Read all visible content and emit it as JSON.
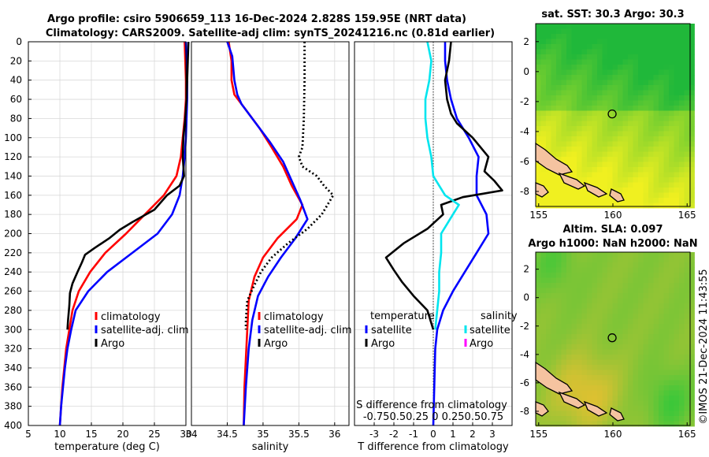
{
  "title": {
    "line1": "Argo profile: csiro 5906659_113 16-Dec-2024 2.828S 159.95E (NRT data)",
    "line2": "Climatology: CARS2009. Satellite-adj clim: synTS_20241216.nc (0.81d earlier)"
  },
  "watermark": "©IMOS 21-Dec-2024 11:43:55",
  "colors": {
    "climatology": "#ff0000",
    "satellite": "#0000ff",
    "argo": "#000000",
    "salinity_satellite": "#00e5ee",
    "salinity_argo": "#ff00ff",
    "sst_map_low": "#f0f020",
    "sst_map_high": "#20b83a",
    "sla_map_low": "#f5c030",
    "sla_map_high": "#2ec83a",
    "land": "#f5c3a0"
  },
  "chart_data": [
    {
      "type": "line",
      "id": "temperature",
      "xlabel": "temperature (deg C)",
      "xlim": [
        5,
        30
      ],
      "xticks": [
        "5",
        "10",
        "15",
        "20",
        "25",
        "30"
      ],
      "ylim": [
        0,
        400
      ],
      "yticks": [
        "0",
        "20",
        "40",
        "60",
        "80",
        "100",
        "120",
        "140",
        "160",
        "180",
        "200",
        "220",
        "240",
        "260",
        "280",
        "300",
        "320",
        "340",
        "360",
        "380",
        "400"
      ],
      "legend": [
        "climatology",
        "satellite-adj. clim",
        "Argo"
      ],
      "series": [
        {
          "name": "climatology",
          "color": "#ff0000",
          "points": [
            [
              29.8,
              0
            ],
            [
              29.9,
              20
            ],
            [
              30.0,
              40
            ],
            [
              30.0,
              60
            ],
            [
              29.8,
              80
            ],
            [
              29.5,
              100
            ],
            [
              29.2,
              120
            ],
            [
              28.5,
              140
            ],
            [
              26.5,
              160
            ],
            [
              23.5,
              180
            ],
            [
              20.5,
              200
            ],
            [
              17.2,
              220
            ],
            [
              14.8,
              240
            ],
            [
              13.0,
              260
            ],
            [
              12.0,
              280
            ],
            [
              11.5,
              300
            ],
            [
              11.0,
              320
            ],
            [
              10.7,
              340
            ],
            [
              10.4,
              360
            ],
            [
              10.2,
              380
            ],
            [
              10.0,
              400
            ]
          ]
        },
        {
          "name": "satellite-adj. clim",
          "color": "#0000ff",
          "points": [
            [
              30.0,
              0
            ],
            [
              30.1,
              20
            ],
            [
              30.2,
              40
            ],
            [
              30.2,
              60
            ],
            [
              30.1,
              80
            ],
            [
              30.0,
              100
            ],
            [
              29.8,
              120
            ],
            [
              29.5,
              140
            ],
            [
              29.0,
              160
            ],
            [
              27.8,
              180
            ],
            [
              25.5,
              200
            ],
            [
              21.5,
              220
            ],
            [
              17.5,
              240
            ],
            [
              14.5,
              260
            ],
            [
              12.5,
              280
            ],
            [
              11.8,
              300
            ],
            [
              11.2,
              320
            ],
            [
              10.8,
              340
            ],
            [
              10.5,
              360
            ],
            [
              10.2,
              380
            ],
            [
              10.0,
              400
            ]
          ]
        },
        {
          "name": "Argo",
          "color": "#000000",
          "points": [
            [
              30.4,
              0
            ],
            [
              30.3,
              20
            ],
            [
              30.2,
              40
            ],
            [
              30.1,
              60
            ],
            [
              29.9,
              80
            ],
            [
              29.6,
              100
            ],
            [
              29.5,
              120
            ],
            [
              29.7,
              140
            ],
            [
              29.0,
              150
            ],
            [
              27.0,
              160
            ],
            [
              25.0,
              175
            ],
            [
              21.5,
              188
            ],
            [
              19.5,
              196
            ],
            [
              17.8,
              205
            ],
            [
              15.5,
              215
            ],
            [
              14.0,
              222
            ],
            [
              13.5,
              230
            ],
            [
              12.8,
              240
            ],
            [
              12.0,
              252
            ],
            [
              11.6,
              262
            ],
            [
              11.5,
              275
            ],
            [
              11.3,
              290
            ],
            [
              11.2,
              300
            ]
          ]
        }
      ]
    },
    {
      "type": "line",
      "id": "salinity",
      "xlabel": "salinity",
      "xlim": [
        34,
        36.2
      ],
      "xticks": [
        "34",
        "34.5",
        "35",
        "35.5",
        "36"
      ],
      "ylim": [
        0,
        400
      ],
      "legend": [
        "climatology",
        "satellite-adj. clim",
        "Argo"
      ],
      "series": [
        {
          "name": "climatology",
          "color": "#ff0000",
          "points": [
            [
              34.52,
              0
            ],
            [
              34.56,
              20
            ],
            [
              34.56,
              40
            ],
            [
              34.6,
              55
            ],
            [
              34.75,
              70
            ],
            [
              34.95,
              90
            ],
            [
              35.12,
              110
            ],
            [
              35.28,
              130
            ],
            [
              35.4,
              150
            ],
            [
              35.55,
              170
            ],
            [
              35.47,
              185
            ],
            [
              35.2,
              205
            ],
            [
              35.0,
              225
            ],
            [
              34.88,
              245
            ],
            [
              34.8,
              270
            ],
            [
              34.78,
              300
            ],
            [
              34.76,
              330
            ],
            [
              34.74,
              360
            ],
            [
              34.73,
              400
            ]
          ]
        },
        {
          "name": "satellite-adj. clim",
          "color": "#0000ff",
          "points": [
            [
              34.5,
              0
            ],
            [
              34.57,
              15
            ],
            [
              34.6,
              40
            ],
            [
              34.64,
              55
            ],
            [
              34.7,
              65
            ],
            [
              34.9,
              85
            ],
            [
              35.1,
              105
            ],
            [
              35.28,
              125
            ],
            [
              35.4,
              145
            ],
            [
              35.52,
              165
            ],
            [
              35.62,
              185
            ],
            [
              35.45,
              205
            ],
            [
              35.25,
              225
            ],
            [
              35.07,
              245
            ],
            [
              34.93,
              265
            ],
            [
              34.85,
              290
            ],
            [
              34.8,
              320
            ],
            [
              34.76,
              360
            ],
            [
              34.73,
              400
            ]
          ]
        },
        {
          "name": "Argo",
          "color": "#000000",
          "dotted": true,
          "points": [
            [
              35.58,
              0
            ],
            [
              35.58,
              40
            ],
            [
              35.57,
              80
            ],
            [
              35.55,
              110
            ],
            [
              35.5,
              120
            ],
            [
              35.55,
              130
            ],
            [
              35.75,
              140
            ],
            [
              35.85,
              150
            ],
            [
              35.98,
              160
            ],
            [
              35.9,
              170
            ],
            [
              35.82,
              180
            ],
            [
              35.62,
              195
            ],
            [
              35.35,
              210
            ],
            [
              35.12,
              225
            ],
            [
              34.97,
              240
            ],
            [
              34.87,
              255
            ],
            [
              34.78,
              270
            ],
            [
              34.76,
              290
            ],
            [
              34.76,
              300
            ]
          ]
        }
      ]
    },
    {
      "type": "line",
      "id": "difference",
      "xlabel": "T difference from climatology",
      "xlim": [
        -4,
        4
      ],
      "xticks": [
        "-3",
        "-2",
        "-1",
        "0",
        "1",
        "2",
        "3"
      ],
      "ylim": [
        0,
        400
      ],
      "top_label": "S difference from climatology",
      "top_ticks": "-0.750.50.25 0 0.250.50.75",
      "legend_left": {
        "title": "temperature",
        "items": [
          "satellite",
          "Argo"
        ]
      },
      "legend_right": {
        "title": "salinity",
        "items": [
          "satellite",
          "Argo"
        ]
      },
      "series": [
        {
          "name": "temperature satellite",
          "color": "#0000ff",
          "points": [
            [
              0.6,
              0
            ],
            [
              0.6,
              20
            ],
            [
              0.7,
              40
            ],
            [
              0.9,
              60
            ],
            [
              1.2,
              80
            ],
            [
              1.8,
              100
            ],
            [
              2.3,
              120
            ],
            [
              2.2,
              140
            ],
            [
              2.2,
              160
            ],
            [
              2.7,
              180
            ],
            [
              2.8,
              200
            ],
            [
              2.2,
              220
            ],
            [
              1.6,
              240
            ],
            [
              1.0,
              260
            ],
            [
              0.5,
              280
            ],
            [
              0.2,
              300
            ],
            [
              0.1,
              320
            ],
            [
              0.0,
              400
            ]
          ]
        },
        {
          "name": "temperature Argo",
          "color": "#000000",
          "points": [
            [
              0.9,
              0
            ],
            [
              0.8,
              20
            ],
            [
              0.6,
              40
            ],
            [
              0.7,
              60
            ],
            [
              0.9,
              75
            ],
            [
              1.2,
              85
            ],
            [
              2.0,
              100
            ],
            [
              2.8,
              120
            ],
            [
              2.6,
              135
            ],
            [
              3.1,
              145
            ],
            [
              3.5,
              155
            ],
            [
              1.5,
              162
            ],
            [
              0.4,
              170
            ],
            [
              0.5,
              180
            ],
            [
              -0.3,
              195
            ],
            [
              -1.5,
              210
            ],
            [
              -2.4,
              225
            ],
            [
              -2.0,
              238
            ],
            [
              -1.6,
              250
            ],
            [
              -1.0,
              265
            ],
            [
              -0.3,
              280
            ],
            [
              0.0,
              300
            ]
          ]
        },
        {
          "name": "salinity satellite",
          "color": "#00e5ee",
          "points": [
            [
              -0.3,
              0
            ],
            [
              -0.1,
              20
            ],
            [
              -0.2,
              40
            ],
            [
              -0.4,
              60
            ],
            [
              -0.4,
              80
            ],
            [
              -0.3,
              100
            ],
            [
              -0.1,
              120
            ],
            [
              0.0,
              140
            ],
            [
              0.6,
              160
            ],
            [
              1.3,
              170
            ],
            [
              1.0,
              180
            ],
            [
              0.7,
              190
            ],
            [
              0.4,
              200
            ],
            [
              0.4,
              220
            ],
            [
              0.3,
              240
            ],
            [
              0.3,
              260
            ],
            [
              0.2,
              280
            ],
            [
              0.1,
              300
            ]
          ]
        }
      ]
    },
    {
      "type": "heatmap",
      "id": "sst_map",
      "title": "sat. SST: 30.3 Argo: 30.3",
      "xticks": [
        "155",
        "160",
        "165"
      ],
      "yticks": [
        "2",
        "0",
        "-2",
        "-4",
        "-6",
        "-8"
      ],
      "xlim": [
        154.8,
        165.2
      ],
      "ylim": [
        -9.0,
        3.2
      ]
    },
    {
      "type": "heatmap",
      "id": "sla_map",
      "title_line1": "Altim. SLA: 0.097",
      "title_line2": "Argo h1000: NaN h2000: NaN",
      "xticks": [
        "155",
        "160",
        "165"
      ],
      "yticks": [
        "2",
        "0",
        "-2",
        "-4",
        "-6",
        "-8"
      ],
      "xlim": [
        154.8,
        165.2
      ],
      "ylim": [
        -9.0,
        3.2
      ]
    }
  ]
}
